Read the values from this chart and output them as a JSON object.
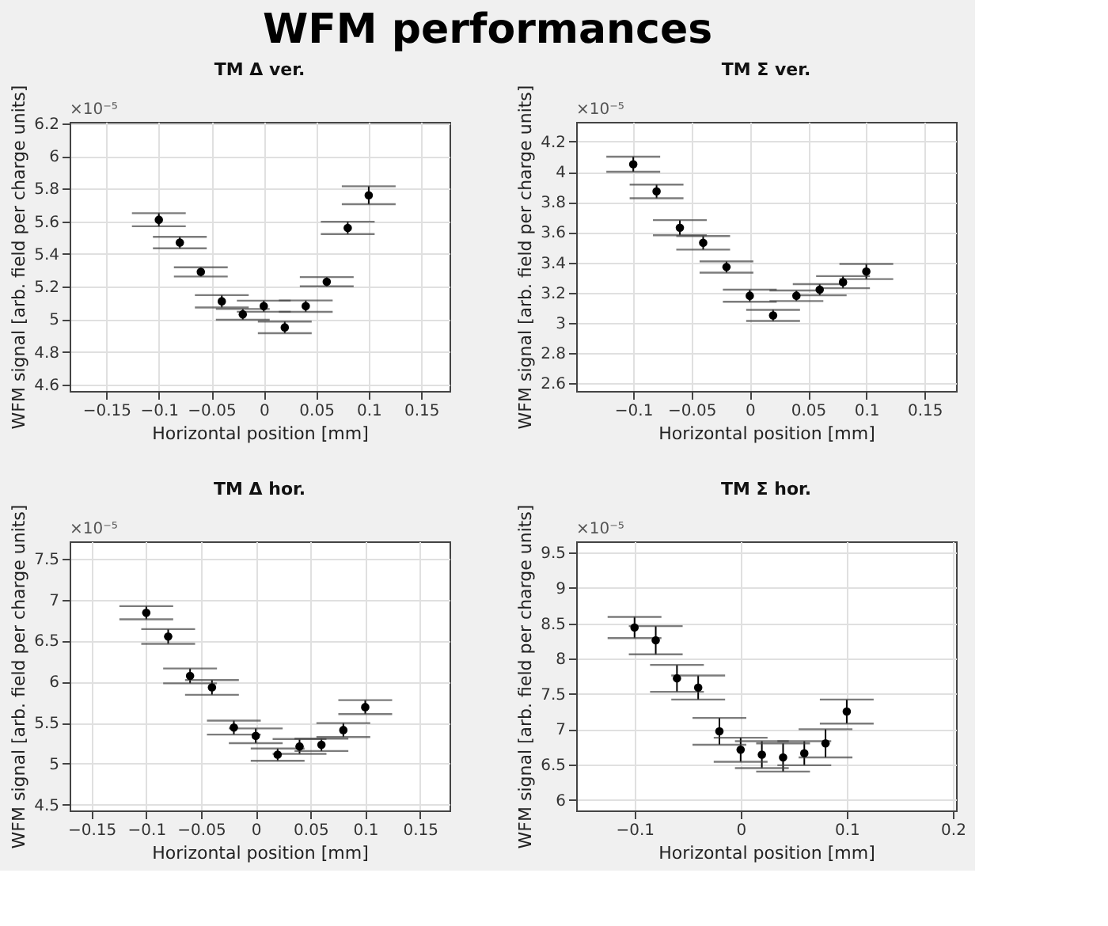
{
  "chart_data": [
    {
      "type": "scatter",
      "title": "TM Δ ver.",
      "xlabel": "Horizontal position [mm]",
      "ylabel": "WFM signal [arb. field per charge units]",
      "annotations": [
        "WFM performances",
        "×10⁻⁵"
      ],
      "color": "#000000",
      "marker": "circle",
      "grid": true,
      "x": [
        -0.1,
        -0.08,
        -0.06,
        -0.04,
        -0.02,
        0,
        0.02,
        0.04,
        0.06,
        0.08,
        0.1
      ],
      "values": [
        5.61,
        5.47,
        5.29,
        5.11,
        5.03,
        5.08,
        4.95,
        5.08,
        5.23,
        5.56,
        5.76
      ],
      "errors": [
        0.04,
        0.035,
        0.028,
        0.038,
        0.033,
        0.034,
        0.036,
        0.035,
        0.028,
        0.038,
        0.055
      ],
      "xlim": [
        -0.185,
        0.177
      ],
      "ylim": [
        4.56,
        6.21
      ],
      "xticks": [
        -0.15,
        -0.1,
        -0.05,
        0,
        0.05,
        0.1,
        0.15
      ],
      "yticks": [
        4.6,
        4.8,
        5,
        5.2,
        5.4,
        5.6,
        5.8,
        6,
        6.2
      ]
    },
    {
      "type": "scatter",
      "title": "TM Σ ver.",
      "xlabel": "Horizontal position [mm]",
      "ylabel": "WFM signal [arb. field per charge units]",
      "annotations": [
        "×10⁻⁵"
      ],
      "color": "#000000",
      "marker": "circle",
      "grid": true,
      "x": [
        -0.1,
        -0.08,
        -0.06,
        -0.04,
        -0.02,
        0,
        0.02,
        0.04,
        0.06,
        0.08,
        0.1
      ],
      "values": [
        4.05,
        3.87,
        3.63,
        3.53,
        3.37,
        3.18,
        3.05,
        3.18,
        3.22,
        3.27,
        3.34
      ],
      "errors": [
        0.05,
        0.045,
        0.05,
        0.045,
        0.037,
        0.04,
        0.037,
        0.035,
        0.037,
        0.04,
        0.05
      ],
      "xlim": [
        -0.149,
        0.177
      ],
      "ylim": [
        2.55,
        4.33
      ],
      "xticks": [
        -0.1,
        -0.05,
        0,
        0.05,
        0.1,
        0.15
      ],
      "yticks": [
        2.6,
        2.8,
        3,
        3.2,
        3.4,
        3.6,
        3.8,
        4,
        4.2
      ]
    },
    {
      "type": "scatter",
      "title": "TM Δ hor.",
      "xlabel": "Horizontal position [mm]",
      "ylabel": "WFM signal [arb. field per charge units]",
      "annotations": [
        "×10⁻⁵"
      ],
      "color": "#000000",
      "marker": "circle",
      "grid": true,
      "x": [
        -0.1,
        -0.08,
        -0.06,
        -0.04,
        -0.02,
        0,
        0.02,
        0.04,
        0.06,
        0.08,
        0.1
      ],
      "values": [
        6.84,
        6.55,
        6.07,
        5.93,
        5.44,
        5.34,
        5.11,
        5.21,
        5.23,
        5.41,
        5.69
      ],
      "errors": [
        0.08,
        0.09,
        0.09,
        0.09,
        0.085,
        0.09,
        0.075,
        0.09,
        0.075,
        0.085,
        0.085
      ],
      "xlim": [
        -0.17,
        0.177
      ],
      "ylim": [
        4.43,
        7.71
      ],
      "xticks": [
        -0.15,
        -0.1,
        -0.05,
        0,
        0.05,
        0.1,
        0.15
      ],
      "yticks": [
        4.5,
        5,
        5.5,
        6,
        6.5,
        7,
        7.5
      ]
    },
    {
      "type": "scatter",
      "title": "TM Σ hor.",
      "xlabel": "Horizontal position [mm]",
      "ylabel": "WFM signal [arb. field per charge units]",
      "annotations": [
        "×10⁻⁵"
      ],
      "color": "#000000",
      "marker": "circle",
      "grid": true,
      "x": [
        -0.1,
        -0.08,
        -0.06,
        -0.04,
        -0.02,
        0,
        0.02,
        0.04,
        0.06,
        0.08,
        0.1
      ],
      "values": [
        8.44,
        8.26,
        7.72,
        7.59,
        6.97,
        6.71,
        6.64,
        6.6,
        6.66,
        6.8,
        7.25
      ],
      "errors": [
        0.15,
        0.2,
        0.19,
        0.17,
        0.19,
        0.17,
        0.19,
        0.2,
        0.17,
        0.2,
        0.17
      ],
      "xlim": [
        -0.155,
        0.203
      ],
      "ylim": [
        5.85,
        9.66
      ],
      "xticks": [
        -0.1,
        0,
        0.1,
        0.2
      ],
      "yticks": [
        6,
        6.5,
        7,
        7.5,
        8,
        8.5,
        9,
        9.5
      ]
    }
  ]
}
